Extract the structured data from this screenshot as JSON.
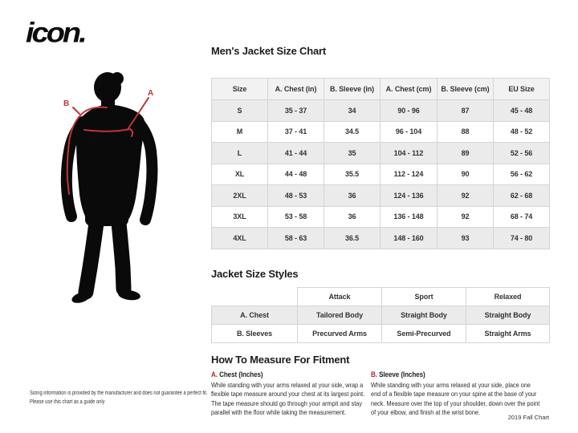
{
  "brand": {
    "logo_text": "icon."
  },
  "figure": {
    "labels": {
      "a": "A",
      "b": "B"
    },
    "line_color": "#c2333a",
    "silhouette_color": "#0a0a0a"
  },
  "size_chart": {
    "title": "Men's Jacket Size Chart",
    "headers": [
      "Size",
      "A. Chest (in)",
      "B. Sleeve (in)",
      "A. Chest (cm)",
      "B. Sleeve (cm)",
      "EU Size"
    ],
    "rows": [
      [
        "S",
        "35 - 37",
        "34",
        "90 - 96",
        "87",
        "45 - 48"
      ],
      [
        "M",
        "37 - 41",
        "34.5",
        "96 - 104",
        "88",
        "48 - 52"
      ],
      [
        "L",
        "41 - 44",
        "35",
        "104 - 112",
        "89",
        "52 - 56"
      ],
      [
        "XL",
        "44 - 48",
        "35.5",
        "112 - 124",
        "90",
        "56 - 62"
      ],
      [
        "2XL",
        "48 - 53",
        "36",
        "124 - 136",
        "92",
        "62 - 68"
      ],
      [
        "3XL",
        "53 - 58",
        "36",
        "136 - 148",
        "92",
        "68 - 74"
      ],
      [
        "4XL",
        "58 - 63",
        "36.5",
        "148 - 160",
        "93",
        "74 - 80"
      ]
    ]
  },
  "styles_table": {
    "title": "Jacket Size Styles",
    "headers": [
      "",
      "Attack",
      "Sport",
      "Relaxed"
    ],
    "rows": [
      [
        "A. Chest",
        "Tailored Body",
        "Straight Body",
        "Straight Body"
      ],
      [
        "B. Sleeves",
        "Precurved Arms",
        "Semi-Precurved",
        "Straight Arms"
      ]
    ]
  },
  "measure": {
    "title": "How To Measure For Fitment",
    "chest": {
      "label_letter": "A.",
      "label_rest": " Chest (Inches)",
      "text": "While standing with your arms relaxed at your side, wrap a flexible tape measure around your chest at its largest point. The tape measure should go through your armpit and stay parallel with the floor while taking the measurement."
    },
    "sleeve": {
      "label_letter": "B.",
      "label_rest": " Sleeve (Inches)",
      "text": "While standing with your arms relaxed at your side, place one end of a flexible tape measure on your spine at the base of your neck. Measure over the top of your shoulder, down over the point of your elbow, and finish at the wrist bone."
    }
  },
  "disclaimer_lines": [
    "Sizing information is provided by the manufacturer and does not guarantee a perfect fit.",
    "Please use this chart as a guide only"
  ],
  "footer": {
    "chart_version": "2019 Fall Chart"
  },
  "colors": {
    "accent_red": "#b9252b",
    "row_alt": "#ebebeb",
    "border": "#d4d4d4",
    "header_bg": "#f2f2f2",
    "text": "#333333"
  }
}
